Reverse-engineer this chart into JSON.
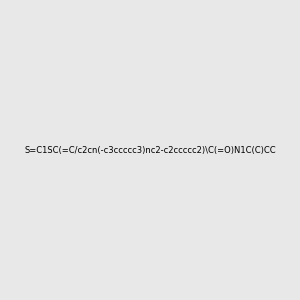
{
  "smiles": "S=C1SC(=C/c2cn(-c3ccccc3)nc2-c2ccccc2)\\C(=O)N1C(C)CC",
  "title": "",
  "bg_color": "#e8e8e8",
  "fig_width": 3.0,
  "fig_height": 3.0,
  "dpi": 100,
  "bond_colors": {
    "C": "#000000",
    "N": "#0000ff",
    "O": "#ff0000",
    "S": "#cccc00"
  },
  "atom_label_color_N": "#0000ff",
  "atom_label_color_O": "#ff0000",
  "atom_label_color_S": "#cccc00"
}
